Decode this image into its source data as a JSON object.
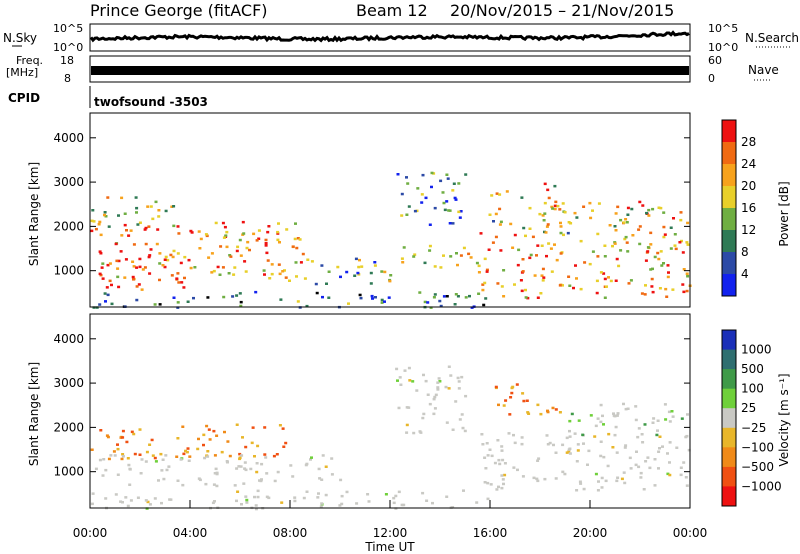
{
  "header": {
    "station": "Prince George (fitACF)",
    "beam": "Beam 12",
    "dates": "20/Nov/2015 – 21/Nov/2015"
  },
  "aux_panels": {
    "nsky_label": "N.Sky",
    "nsky_ticks": [
      "10^5",
      "10^0"
    ],
    "nsearch_label": "N.Search",
    "nsearch_ticks": [
      "10^5",
      "10^0"
    ],
    "freq_label_line1": "Freq.",
    "freq_label_line2": "[MHz]",
    "freq_ticks": [
      "18",
      "8"
    ],
    "nave_label": "Nave",
    "nave_ticks": [
      "60",
      "0"
    ],
    "cpid_label": "CPID",
    "cpid_value": "twofsound -3503"
  },
  "chart_data": [
    {
      "type": "heatmap",
      "name": "power",
      "ylabel": "Slant Range [km]",
      "ylim": [
        180,
        4560
      ],
      "yticks": [
        1000,
        2000,
        3000,
        4000
      ],
      "xlim": [
        0,
        24
      ],
      "colorbar_label": "Power [dB]",
      "colorbar_ticks": [
        "28",
        "24",
        "20",
        "16",
        "12",
        "8",
        "4"
      ],
      "colorbar_colors": [
        "#ee1111",
        "#f06a12",
        "#f7a21c",
        "#e8cf2a",
        "#6fae42",
        "#2f7a55",
        "#2c4aa6",
        "#1222ee"
      ],
      "regions": [
        {
          "x0": 0.0,
          "x1": 8.6,
          "y0": 800,
          "y1": 2150,
          "intensity": 0.75
        },
        {
          "x0": 0.3,
          "x1": 4.0,
          "y0": 600,
          "y1": 1500,
          "intensity": 0.95
        },
        {
          "x0": 0.0,
          "x1": 3.5,
          "y0": 2000,
          "y1": 2700,
          "intensity": 0.55
        },
        {
          "x0": 0.0,
          "x1": 16.0,
          "y0": 180,
          "y1": 550,
          "intensity": 0.25
        },
        {
          "x0": 8.6,
          "x1": 12.5,
          "y0": 700,
          "y1": 1300,
          "intensity": 0.35
        },
        {
          "x0": 12.0,
          "x1": 15.5,
          "y0": 1100,
          "y1": 1600,
          "intensity": 0.55
        },
        {
          "x0": 15.5,
          "x1": 24.0,
          "y0": 400,
          "y1": 1900,
          "intensity": 0.7
        },
        {
          "x0": 15.5,
          "x1": 19.5,
          "y0": 1800,
          "y1": 2400,
          "intensity": 0.5
        },
        {
          "x0": 16.0,
          "x1": 19.0,
          "y0": 2400,
          "y1": 3000,
          "intensity": 0.6
        },
        {
          "x0": 19.5,
          "x1": 24.0,
          "y0": 1800,
          "y1": 2600,
          "intensity": 0.65
        },
        {
          "x0": 12.2,
          "x1": 15.0,
          "y0": 2000,
          "y1": 3300,
          "intensity": 0.3
        }
      ]
    },
    {
      "type": "heatmap",
      "name": "velocity",
      "ylabel": "Slant Range [km]",
      "ylim": [
        180,
        4560
      ],
      "yticks": [
        1000,
        2000,
        3000,
        4000
      ],
      "xlim": [
        0,
        24
      ],
      "xticks": [
        "00:00",
        "04:00",
        "08:00",
        "12:00",
        "16:00",
        "20:00",
        "00:00"
      ],
      "xlabel": "Time UT",
      "colorbar_label": "Velocity [m s⁻¹]",
      "colorbar_ticks": [
        "1000",
        "500",
        "100",
        "25",
        "−25",
        "−100",
        "−500",
        "−1000"
      ],
      "colorbar_colors": [
        "#1a2fb8",
        "#2f6f70",
        "#3f9a48",
        "#6fd03a",
        "#c9c9c4",
        "#e8b62a",
        "#f08a18",
        "#f05012",
        "#ee1111"
      ],
      "regions": [
        {
          "x0": 0.0,
          "x1": 8.0,
          "y0": 1300,
          "y1": 2100,
          "kind": "neg"
        },
        {
          "x0": 0.0,
          "x1": 10.0,
          "y0": 700,
          "y1": 1400,
          "kind": "ground"
        },
        {
          "x0": 0.0,
          "x1": 16.0,
          "y0": 180,
          "y1": 600,
          "kind": "ground"
        },
        {
          "x0": 15.5,
          "x1": 24.0,
          "y0": 600,
          "y1": 1900,
          "kind": "ground"
        },
        {
          "x0": 16.0,
          "x1": 19.0,
          "y0": 2300,
          "y1": 3000,
          "kind": "neg"
        },
        {
          "x0": 19.0,
          "x1": 24.0,
          "y0": 1800,
          "y1": 2600,
          "kind": "pos"
        },
        {
          "x0": 12.2,
          "x1": 15.0,
          "y0": 1800,
          "y1": 3400,
          "kind": "ground"
        }
      ]
    }
  ]
}
